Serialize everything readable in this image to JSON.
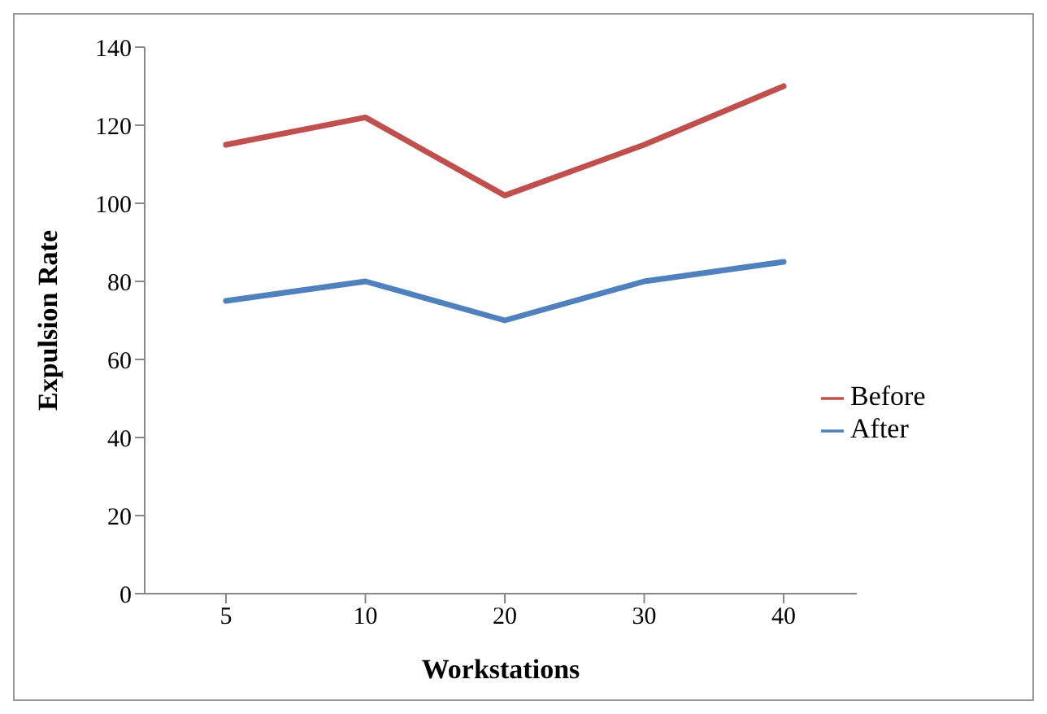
{
  "chart_data": {
    "type": "line",
    "xlabel": "Workstations",
    "ylabel": "Expulsion Rate",
    "categories": [
      "5",
      "10",
      "20",
      "30",
      "40"
    ],
    "series": [
      {
        "name": "Before",
        "color": "#c0504d",
        "values": [
          115,
          122,
          102,
          115,
          130
        ]
      },
      {
        "name": "After",
        "color": "#4f81bd",
        "values": [
          75,
          80,
          70,
          80,
          85
        ]
      }
    ],
    "ylim": [
      0,
      140
    ],
    "yticks": [
      0,
      20,
      40,
      60,
      80,
      100,
      120,
      140
    ],
    "legend": "right",
    "marker": "none",
    "line_style": "solid"
  }
}
